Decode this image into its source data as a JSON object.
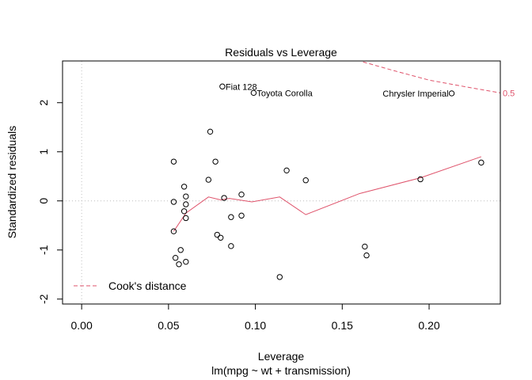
{
  "chart_data": {
    "type": "scatter",
    "title": "Residuals vs Leverage",
    "xlabel": "Leverage",
    "sublabel": "lm(mpg ~ wt + transmission)",
    "ylabel": "Standardized residuals",
    "xlim": [
      -0.011,
      0.241
    ],
    "ylim": [
      -2.1,
      2.85
    ],
    "xticks": [
      0.0,
      0.05,
      0.1,
      0.15,
      0.2
    ],
    "xtick_labels": [
      "0.00",
      "0.05",
      "0.10",
      "0.15",
      "0.20"
    ],
    "yticks": [
      -2,
      -1,
      0,
      1,
      2
    ],
    "ytick_labels": [
      "-2",
      "-1",
      "0",
      "1",
      "2"
    ],
    "reference_lines": {
      "x": 0,
      "y": 0
    },
    "colors": {
      "points": "#000000",
      "smooth": "#df536b",
      "cook": "#df536b",
      "reference": "#bebebe"
    },
    "legend": {
      "position": "bottom-left",
      "label": "Cook's distance"
    },
    "cook_contour": {
      "label": "0.5",
      "points": [
        [
          0.162,
          2.83
        ],
        [
          0.18,
          2.65
        ],
        [
          0.2,
          2.46
        ],
        [
          0.22,
          2.33
        ],
        [
          0.241,
          2.2
        ]
      ]
    },
    "smooth_line": [
      [
        0.053,
        -0.62
      ],
      [
        0.06,
        -0.25
      ],
      [
        0.073,
        0.08
      ],
      [
        0.08,
        0.02
      ],
      [
        0.085,
        0.05
      ],
      [
        0.098,
        -0.02
      ],
      [
        0.114,
        0.08
      ],
      [
        0.129,
        -0.28
      ],
      [
        0.16,
        0.15
      ],
      [
        0.195,
        0.47
      ],
      [
        0.23,
        0.9
      ]
    ],
    "points": [
      {
        "x": 0.053,
        "y": 0.8
      },
      {
        "x": 0.053,
        "y": -0.02
      },
      {
        "x": 0.053,
        "y": -0.62
      },
      {
        "x": 0.054,
        "y": -1.16
      },
      {
        "x": 0.056,
        "y": -1.29
      },
      {
        "x": 0.057,
        "y": -1.0
      },
      {
        "x": 0.059,
        "y": 0.29
      },
      {
        "x": 0.059,
        "y": -0.21
      },
      {
        "x": 0.06,
        "y": 0.09
      },
      {
        "x": 0.06,
        "y": -0.07
      },
      {
        "x": 0.06,
        "y": -0.35
      },
      {
        "x": 0.06,
        "y": -1.24
      },
      {
        "x": 0.073,
        "y": 0.43
      },
      {
        "x": 0.074,
        "y": 1.41
      },
      {
        "x": 0.077,
        "y": 0.8
      },
      {
        "x": 0.078,
        "y": -0.69
      },
      {
        "x": 0.08,
        "y": -0.75
      },
      {
        "x": 0.081,
        "y": 2.33,
        "label": "Fiat 128",
        "label_side": "right"
      },
      {
        "x": 0.082,
        "y": 0.06
      },
      {
        "x": 0.086,
        "y": -0.92
      },
      {
        "x": 0.086,
        "y": -0.33
      },
      {
        "x": 0.092,
        "y": -0.3
      },
      {
        "x": 0.092,
        "y": 0.13
      },
      {
        "x": 0.099,
        "y": 2.2,
        "label": "Toyota Corolla",
        "label_side": "right"
      },
      {
        "x": 0.114,
        "y": -1.55
      },
      {
        "x": 0.118,
        "y": 0.62
      },
      {
        "x": 0.129,
        "y": 0.42
      },
      {
        "x": 0.163,
        "y": -0.93
      },
      {
        "x": 0.164,
        "y": -1.11
      },
      {
        "x": 0.195,
        "y": 0.44
      },
      {
        "x": 0.213,
        "y": 2.19,
        "label": "Chrysler Imperial",
        "label_side": "left"
      },
      {
        "x": 0.23,
        "y": 0.78
      }
    ]
  }
}
